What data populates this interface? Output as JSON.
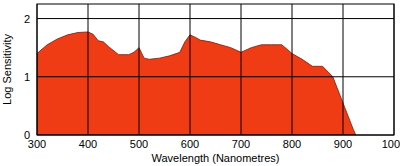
{
  "chart_data": {
    "type": "area",
    "x_label": "Wavelength (Nanometres)",
    "y_label": "Log Sensitivity",
    "x": [
      300,
      320,
      340,
      360,
      380,
      400,
      410,
      420,
      430,
      440,
      460,
      480,
      490,
      500,
      510,
      520,
      540,
      560,
      580,
      590,
      600,
      610,
      620,
      640,
      660,
      680,
      700,
      720,
      740,
      760,
      780,
      800,
      820,
      840,
      860,
      880,
      900,
      920,
      925
    ],
    "values": [
      1.4,
      1.55,
      1.65,
      1.72,
      1.76,
      1.77,
      1.73,
      1.62,
      1.6,
      1.52,
      1.38,
      1.38,
      1.42,
      1.5,
      1.32,
      1.3,
      1.32,
      1.36,
      1.42,
      1.6,
      1.72,
      1.68,
      1.63,
      1.6,
      1.55,
      1.5,
      1.42,
      1.5,
      1.55,
      1.55,
      1.55,
      1.4,
      1.3,
      1.18,
      1.18,
      1.0,
      0.55,
      0.1,
      0
    ],
    "color": "#f03c14",
    "xlim": [
      300,
      1000
    ],
    "xticks": [
      300,
      400,
      500,
      600,
      700,
      800,
      900,
      1000
    ],
    "ylim": [
      0,
      2.25
    ],
    "yticks": [
      0,
      1,
      2
    ],
    "grid": true
  }
}
